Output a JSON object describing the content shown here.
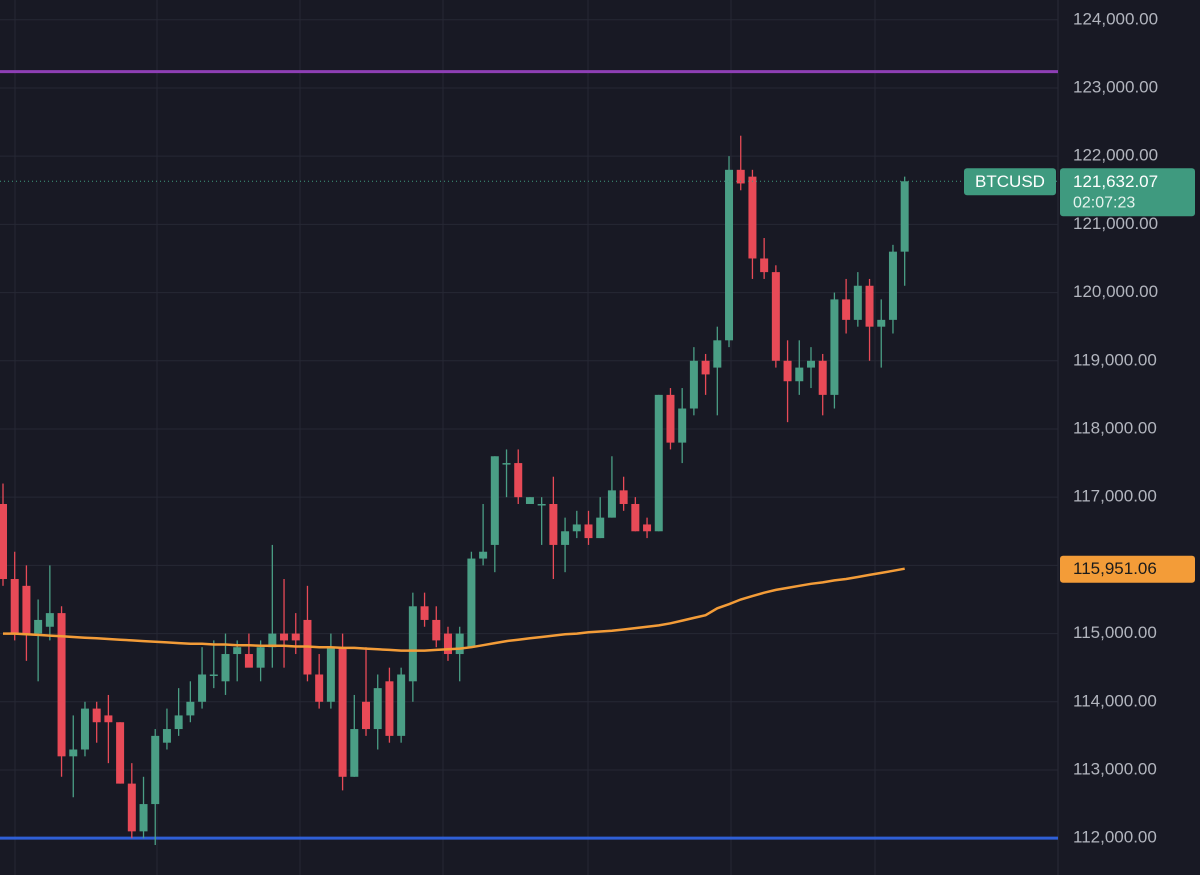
{
  "chart_data": {
    "type": "candlestick",
    "ylim": [
      111460,
      124290
    ],
    "yticks": [
      {
        "value": 112000,
        "label": "112,000.00"
      },
      {
        "value": 113000,
        "label": "113,000.00"
      },
      {
        "value": 114000,
        "label": "114,000.00"
      },
      {
        "value": 115000,
        "label": "115,000.00"
      },
      {
        "value": 116000,
        "label": "116,000.00"
      },
      {
        "value": 117000,
        "label": "117,000.00"
      },
      {
        "value": 118000,
        "label": "118,000.00"
      },
      {
        "value": 119000,
        "label": "119,000.00"
      },
      {
        "value": 120000,
        "label": "120,000.00"
      },
      {
        "value": 121000,
        "label": "121,000.00"
      },
      {
        "value": 122000,
        "label": "122,000.00"
      },
      {
        "value": 123000,
        "label": "123,000.00"
      },
      {
        "value": 124000,
        "label": "124,000.00"
      }
    ],
    "grid": true,
    "series": [
      {
        "name": "BTCUSD",
        "up_color": "#4a9e85",
        "down_color": "#e84a57",
        "open": [
          116900,
          115800,
          115700,
          115000,
          115100,
          115300,
          113200,
          113300,
          113900,
          113800,
          113700,
          112800,
          112100,
          112500,
          113400,
          113600,
          113800,
          114000,
          114400,
          114300,
          114700,
          114700,
          114500,
          114800,
          115000,
          115000,
          115200,
          114400,
          114000,
          114800,
          112900,
          114000,
          113600,
          114300,
          113500,
          114300,
          115400,
          115200,
          115000,
          114700,
          114800,
          116100,
          116300,
          117500,
          117500,
          116900,
          116900,
          116900,
          116300,
          116500,
          116600,
          116400,
          116700,
          117100,
          116900,
          116600,
          116500,
          118500,
          117800,
          118300,
          119000,
          118900,
          119300,
          121800,
          121700,
          120500,
          120300,
          119000,
          118700,
          118900,
          119000,
          118500,
          119900,
          119600,
          120100,
          119500,
          119600,
          120600
        ],
        "high": [
          117200,
          116200,
          116000,
          115500,
          116000,
          115400,
          113800,
          114000,
          114000,
          114100,
          113700,
          113100,
          112900,
          113600,
          113900,
          114200,
          114300,
          114800,
          114900,
          115000,
          114900,
          115000,
          114900,
          116300,
          115800,
          115300,
          115700,
          114700,
          115000,
          115000,
          114100,
          114800,
          114400,
          114500,
          114500,
          115600,
          115600,
          115400,
          115100,
          115100,
          116200,
          116900,
          117600,
          117700,
          117700,
          117000,
          117000,
          117300,
          116700,
          116800,
          116800,
          117000,
          117600,
          117300,
          117000,
          116700,
          118500,
          118600,
          118600,
          119200,
          119100,
          119500,
          122000,
          122300,
          121800,
          120800,
          120400,
          119300,
          119300,
          119200,
          119100,
          120000,
          120200,
          120300,
          120200,
          119900,
          120700,
          121700
        ],
        "low": [
          115700,
          114900,
          114600,
          114300,
          114900,
          112900,
          112600,
          113200,
          113400,
          113100,
          112800,
          112000,
          112000,
          111900,
          113300,
          113500,
          113700,
          113900,
          114200,
          114100,
          114300,
          114600,
          114300,
          114500,
          114500,
          114700,
          114300,
          113900,
          113900,
          112700,
          112900,
          113500,
          113300,
          113400,
          113400,
          114000,
          115100,
          114800,
          114600,
          114300,
          114800,
          116000,
          115900,
          117000,
          116900,
          116900,
          116300,
          115800,
          115900,
          116400,
          116300,
          116400,
          116700,
          116800,
          116500,
          116400,
          116500,
          117700,
          117500,
          118200,
          118500,
          118200,
          119200,
          121500,
          120200,
          120200,
          118900,
          118100,
          118500,
          118600,
          118200,
          118300,
          119400,
          119500,
          119000,
          118900,
          119400,
          120100
        ],
        "close": [
          115800,
          115000,
          115000,
          115200,
          115300,
          113200,
          113300,
          113900,
          113700,
          113700,
          112800,
          112100,
          112500,
          113500,
          113600,
          113800,
          114000,
          114400,
          114400,
          114700,
          114800,
          114500,
          114800,
          115000,
          114900,
          114900,
          114400,
          114000,
          114800,
          112900,
          113600,
          113600,
          114200,
          113500,
          114400,
          115400,
          115200,
          114900,
          114700,
          115000,
          116100,
          116200,
          117600,
          117500,
          117000,
          117000,
          116900,
          116300,
          116500,
          116600,
          116400,
          116700,
          117100,
          116900,
          116500,
          116500,
          118500,
          117800,
          118300,
          119000,
          118800,
          119300,
          121800,
          121600,
          120500,
          120300,
          119000,
          118700,
          118900,
          119000,
          118500,
          119900,
          119600,
          120100,
          119500,
          119600,
          120600,
          121632.07
        ]
      }
    ],
    "moving_average": {
      "color": "#f39c38",
      "values": [
        115000,
        115000,
        114990,
        114980,
        114970,
        114960,
        114950,
        114940,
        114930,
        114920,
        114910,
        114900,
        114890,
        114880,
        114870,
        114860,
        114850,
        114850,
        114840,
        114840,
        114830,
        114830,
        114820,
        114820,
        114820,
        114810,
        114810,
        114800,
        114800,
        114790,
        114790,
        114780,
        114770,
        114760,
        114750,
        114750,
        114750,
        114760,
        114770,
        114780,
        114800,
        114830,
        114860,
        114890,
        114910,
        114930,
        114950,
        114970,
        114990,
        115000,
        115020,
        115030,
        115040,
        115060,
        115080,
        115100,
        115120,
        115150,
        115190,
        115230,
        115270,
        115370,
        115430,
        115500,
        115550,
        115600,
        115640,
        115670,
        115700,
        115730,
        115750,
        115780,
        115800,
        115830,
        115860,
        115890,
        115920,
        115951.06
      ],
      "last": {
        "value": 115951.06,
        "label": "115,951.06"
      }
    },
    "horizontal_lines": [
      {
        "value": 123240,
        "color": "#8e3fb5"
      },
      {
        "value": 112000,
        "color": "#2f5fd6"
      }
    ],
    "last_price": {
      "value": 121632.07,
      "label": "121,632.07",
      "timer": "02:07:23",
      "color": "#3f9a7f"
    }
  }
}
